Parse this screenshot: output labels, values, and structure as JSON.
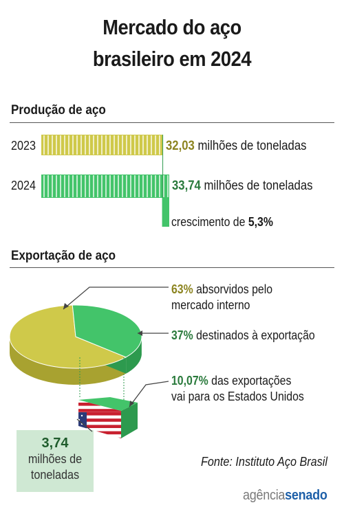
{
  "title_line1": "Mercado do aço",
  "title_line2": "brasileiro em 2024",
  "production": {
    "section_title": "Produção de aço",
    "growth_prefix": "crescimento de ",
    "growth_value": "5,3%"
  },
  "export": {
    "section_title": "Exportação de aço",
    "domestic_pct": "63%",
    "domestic_line1": " absorvidos pelo",
    "domestic_line2": "mercado interno",
    "export_pct": "37%",
    "export_text": " destinados à exportação",
    "us_pct": "10,07%",
    "us_line1": " das exportações",
    "us_line2": "vai para os Estados Unidos",
    "us_amount": "3,74",
    "us_amount_unit_line1": "milhões de",
    "us_amount_unit_line2": "toneladas"
  },
  "source": "Fonte:  Instituto Aço Brasil",
  "logo_part1": "agência",
  "logo_part2": "senado",
  "colors": {
    "yellow": "#cfc94a",
    "yellow_dark": "#a8a230",
    "green": "#43c46a",
    "green_dark": "#2d9a4e",
    "value_2023": "#8c8420",
    "value_2024": "#2a7a3c"
  },
  "chart_data": [
    {
      "type": "bar",
      "orientation": "horizontal",
      "categories": [
        "2023",
        "2024"
      ],
      "values": [
        32.03,
        33.74
      ],
      "value_labels": [
        "32,03",
        "33,74"
      ],
      "unit_label": " milhões de toneladas",
      "annotation": "crescimento de 5,3%"
    },
    {
      "type": "pie",
      "labels": [
        "absorvidos pelo mercado interno",
        "destinados à exportação"
      ],
      "values": [
        63,
        37
      ],
      "sub_slice": {
        "label": "das exportações vai para os Estados Unidos",
        "value_pct_of_exports": 10.07,
        "amount": 3.74,
        "amount_unit": "milhões de toneladas"
      }
    }
  ]
}
